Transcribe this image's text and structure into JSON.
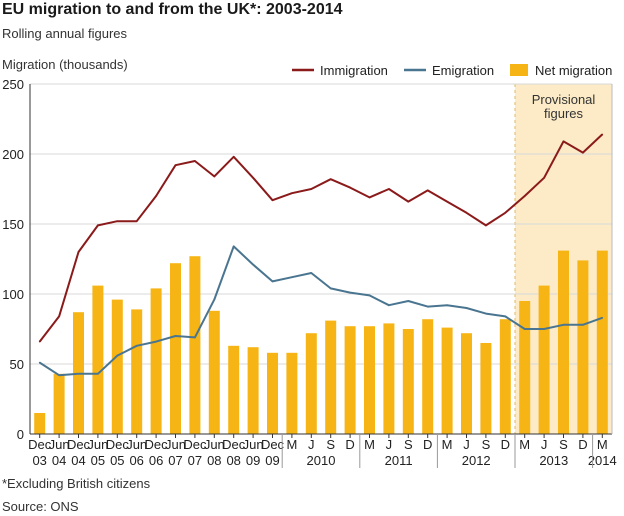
{
  "chart_data": {
    "type": "bar+line",
    "title": "EU migration to and from the UK*: 2003-2014",
    "subtitle": "Rolling annual figures",
    "ylabel": "Migration (thousands)",
    "ylim": [
      0,
      250
    ],
    "yticks": [
      0,
      50,
      100,
      150,
      200,
      250
    ],
    "grid": true,
    "legend_position": "top-right",
    "colors": {
      "immigration": "#8b1a1a",
      "emigration": "#4a7590",
      "net": "#f7b515",
      "shade": "#fcebc6",
      "grid": "#d9d9d9"
    },
    "annotation": {
      "lines": [
        "Provisional",
        "figures"
      ]
    },
    "categories": [
      "Dec 03",
      "Jun 04",
      "Dec 04",
      "Jun 05",
      "Dec 05",
      "Jun 06",
      "Dec 06",
      "Jun 07",
      "Dec 07",
      "Jun 08",
      "Dec 08",
      "Jun 09",
      "Dec 09",
      "Mar 10",
      "Jun 10",
      "Sep 10",
      "Dec 10",
      "Mar 11",
      "Jun 11",
      "Sep 11",
      "Dec 11",
      "Mar 12",
      "Jun 12",
      "Sep 12",
      "Dec 12",
      "Mar 13",
      "Jun 13",
      "Sep 13",
      "Dec 13",
      "Mar 14"
    ],
    "provisional_from": 25,
    "xtick_labels": [
      {
        "top": "Dec",
        "bottom": "03"
      },
      {
        "top": "Jun",
        "bottom": "04"
      },
      {
        "top": "Dec",
        "bottom": "04"
      },
      {
        "top": "Jun",
        "bottom": "05"
      },
      {
        "top": "Dec",
        "bottom": "05"
      },
      {
        "top": "Jun",
        "bottom": "06"
      },
      {
        "top": "Dec",
        "bottom": "06"
      },
      {
        "top": "Jun",
        "bottom": "07"
      },
      {
        "top": "Dec",
        "bottom": "07"
      },
      {
        "top": "Jun",
        "bottom": "08"
      },
      {
        "top": "Dec",
        "bottom": "08"
      },
      {
        "top": "Jun",
        "bottom": "09"
      },
      {
        "top": "Dec",
        "bottom": "09"
      },
      {
        "top": "M",
        "bottom": ""
      },
      {
        "top": "J",
        "bottom": ""
      },
      {
        "top": "S",
        "bottom": ""
      },
      {
        "top": "D",
        "bottom": ""
      },
      {
        "top": "M",
        "bottom": ""
      },
      {
        "top": "J",
        "bottom": ""
      },
      {
        "top": "S",
        "bottom": ""
      },
      {
        "top": "D",
        "bottom": ""
      },
      {
        "top": "M",
        "bottom": ""
      },
      {
        "top": "J",
        "bottom": ""
      },
      {
        "top": "S",
        "bottom": ""
      },
      {
        "top": "D",
        "bottom": ""
      },
      {
        "top": "M",
        "bottom": ""
      },
      {
        "top": "J",
        "bottom": ""
      },
      {
        "top": "S",
        "bottom": ""
      },
      {
        "top": "D",
        "bottom": ""
      },
      {
        "top": "M",
        "bottom": "2014"
      }
    ],
    "year_groups": [
      {
        "label": "2010",
        "from": 13,
        "to": 16
      },
      {
        "label": "2011",
        "from": 17,
        "to": 20
      },
      {
        "label": "2012",
        "from": 21,
        "to": 24
      },
      {
        "label": "2013",
        "from": 25,
        "to": 28
      }
    ],
    "series": [
      {
        "name": "Immigration",
        "kind": "line",
        "values": [
          66,
          84,
          130,
          149,
          152,
          152,
          170,
          192,
          195,
          184,
          198,
          183,
          167,
          172,
          175,
          182,
          176,
          169,
          175,
          166,
          174,
          166,
          158,
          149,
          158,
          170,
          183,
          209,
          201,
          214
        ]
      },
      {
        "name": "Emigration",
        "kind": "line",
        "values": [
          51,
          42,
          43,
          43,
          56,
          63,
          66,
          70,
          69,
          96,
          134,
          121,
          109,
          112,
          115,
          104,
          101,
          99,
          92,
          95,
          91,
          92,
          90,
          86,
          84,
          75,
          75,
          78,
          78,
          83
        ]
      },
      {
        "name": "Net migration",
        "kind": "bar",
        "values": [
          15,
          43,
          87,
          106,
          96,
          89,
          104,
          122,
          127,
          88,
          63,
          62,
          58,
          58,
          72,
          81,
          77,
          77,
          79,
          75,
          82,
          76,
          72,
          65,
          82,
          95,
          106,
          131,
          124,
          131
        ]
      }
    ]
  },
  "footnote": "*Excluding British citizens",
  "source": "Source: ONS"
}
